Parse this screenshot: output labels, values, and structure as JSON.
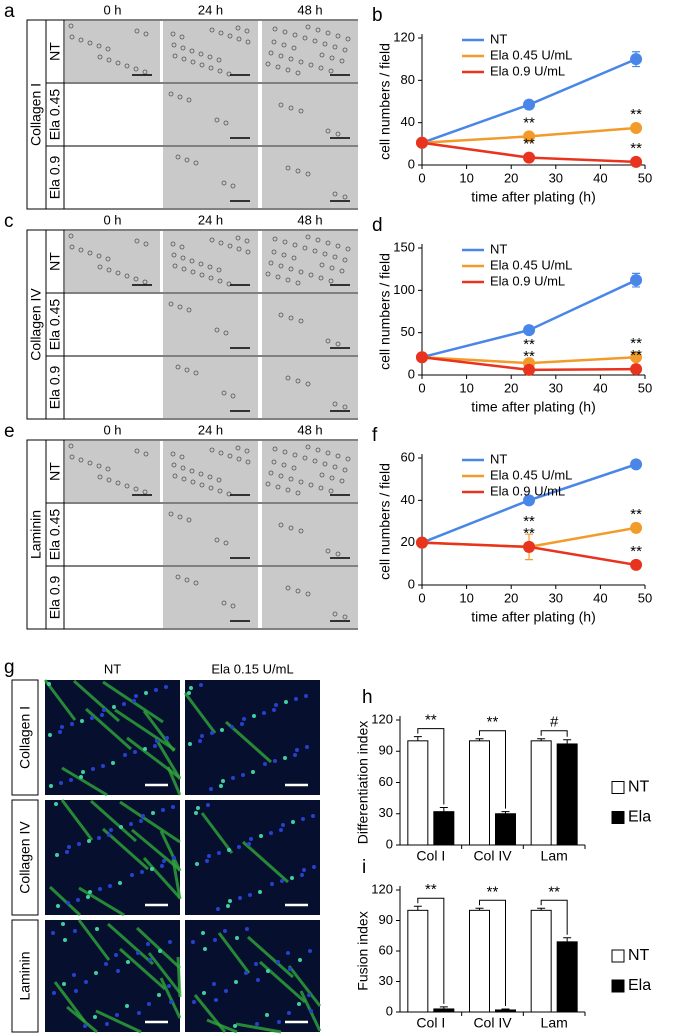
{
  "image_grids": [
    {
      "panel": "a",
      "substrate": "Collagen I",
      "columns": [
        "0 h",
        "24 h",
        "48 h"
      ],
      "rows": [
        "NT",
        "Ela 0.45",
        "Ela 0.9"
      ]
    },
    {
      "panel": "c",
      "substrate": "Collagen IV",
      "columns": [
        "0 h",
        "24 h",
        "48 h"
      ],
      "rows": [
        "NT",
        "Ela 0.45",
        "Ela 0.9"
      ]
    },
    {
      "panel": "e",
      "substrate": "Laminin",
      "columns": [
        "0 h",
        "24 h",
        "48 h"
      ],
      "rows": [
        "NT",
        "Ela 0.45",
        "Ela 0.9"
      ]
    }
  ],
  "fluorescence": {
    "panel": "g",
    "columns": [
      "NT",
      "Ela 0.15 U/mL"
    ],
    "rows": [
      "Collagen I",
      "Collagen IV",
      "Laminin"
    ]
  },
  "chart_data": [
    {
      "type": "line",
      "panel": "b",
      "xlabel": "time after plating (h)",
      "ylabel": "cell numbers / field",
      "x": [
        0,
        24,
        48
      ],
      "xlim": [
        0,
        50
      ],
      "xticks": [
        0,
        10,
        20,
        30,
        40,
        50
      ],
      "ylim": [
        0,
        120
      ],
      "yticks": [
        0,
        40,
        80,
        120
      ],
      "legend": "upper left",
      "series": [
        {
          "name": "NT",
          "color": "#4a86e8",
          "values": [
            21,
            57,
            100
          ],
          "errors": [
            2,
            4,
            7
          ],
          "labels": [
            null,
            null,
            null
          ]
        },
        {
          "name": "Ela 0.45 U/mL",
          "color": "#f39b2a",
          "values": [
            21,
            27,
            35
          ],
          "errors": [
            2,
            2,
            2
          ],
          "labels": [
            null,
            "**",
            "**"
          ]
        },
        {
          "name": "Ela 0.9 U/mL",
          "color": "#e8331e",
          "values": [
            21,
            7,
            3
          ],
          "errors": [
            2,
            1,
            1
          ],
          "labels": [
            null,
            "**",
            "**"
          ]
        }
      ]
    },
    {
      "type": "line",
      "panel": "d",
      "xlabel": "time after plating (h)",
      "ylabel": "cell numbers / field",
      "x": [
        0,
        24,
        48
      ],
      "xlim": [
        0,
        50
      ],
      "xticks": [
        0,
        10,
        20,
        30,
        40,
        50
      ],
      "ylim": [
        0,
        150
      ],
      "yticks": [
        0,
        50,
        100,
        150
      ],
      "legend": "upper left",
      "series": [
        {
          "name": "NT",
          "color": "#4a86e8",
          "values": [
            21,
            53,
            112
          ],
          "errors": [
            2,
            3,
            8
          ],
          "labels": [
            null,
            null,
            null
          ]
        },
        {
          "name": "Ela 0.45 U/mL",
          "color": "#f39b2a",
          "values": [
            21,
            14,
            21
          ],
          "errors": [
            2,
            2,
            2
          ],
          "labels": [
            null,
            "**",
            "**"
          ]
        },
        {
          "name": "Ela 0.9 U/mL",
          "color": "#e8331e",
          "values": [
            21,
            6,
            7
          ],
          "errors": [
            2,
            1,
            1
          ],
          "labels": [
            null,
            "**",
            "**"
          ]
        }
      ]
    },
    {
      "type": "line",
      "panel": "f",
      "xlabel": "time after plating (h)",
      "ylabel": "cell numbers / field",
      "x": [
        0,
        24,
        48
      ],
      "xlim": [
        0,
        50
      ],
      "xticks": [
        0,
        10,
        20,
        30,
        40,
        50
      ],
      "ylim": [
        0,
        60
      ],
      "yticks": [
        0,
        20,
        40,
        60
      ],
      "legend": "upper left",
      "series": [
        {
          "name": "NT",
          "color": "#4a86e8",
          "values": [
            20,
            40,
            57
          ],
          "errors": [
            1,
            2,
            1
          ],
          "labels": [
            null,
            null,
            null
          ]
        },
        {
          "name": "Ela 0.45 U/mL",
          "color": "#f39b2a",
          "values": [
            20,
            18,
            27
          ],
          "errors": [
            1,
            6,
            2
          ],
          "labels": [
            null,
            "**",
            "**"
          ]
        },
        {
          "name": "Ela 0.9 U/mL",
          "color": "#e8331e",
          "values": [
            20,
            18,
            9.5
          ],
          "errors": [
            1,
            2,
            1
          ],
          "labels": [
            null,
            "**",
            "**"
          ]
        }
      ]
    },
    {
      "type": "bar",
      "panel": "h",
      "ylabel": "Differentiation index",
      "categories": [
        "Col I",
        "Col IV",
        "Lam"
      ],
      "ylim": [
        0,
        120
      ],
      "yticks": [
        0,
        30,
        60,
        90,
        120
      ],
      "legend": "right",
      "significance": [
        "**",
        "**",
        "#"
      ],
      "series": [
        {
          "name": "NT",
          "color": "#ffffff",
          "values": [
            100,
            100,
            100
          ],
          "errors": [
            4,
            2,
            2
          ]
        },
        {
          "name": "Ela",
          "color": "#000000",
          "values": [
            32,
            30,
            97
          ],
          "errors": [
            4,
            2,
            4
          ]
        }
      ]
    },
    {
      "type": "bar",
      "panel": "i",
      "ylabel": "Fusion index",
      "categories": [
        "Col I",
        "Col IV",
        "Lam"
      ],
      "ylim": [
        0,
        120
      ],
      "yticks": [
        0,
        30,
        60,
        90,
        120
      ],
      "legend": "right",
      "significance": [
        "**",
        "**",
        "**"
      ],
      "series": [
        {
          "name": "NT",
          "color": "#ffffff",
          "values": [
            100,
            100,
            100
          ],
          "errors": [
            4,
            2,
            2
          ]
        },
        {
          "name": "Ela",
          "color": "#000000",
          "values": [
            3,
            2,
            69
          ],
          "errors": [
            2,
            1,
            4
          ]
        }
      ]
    }
  ]
}
